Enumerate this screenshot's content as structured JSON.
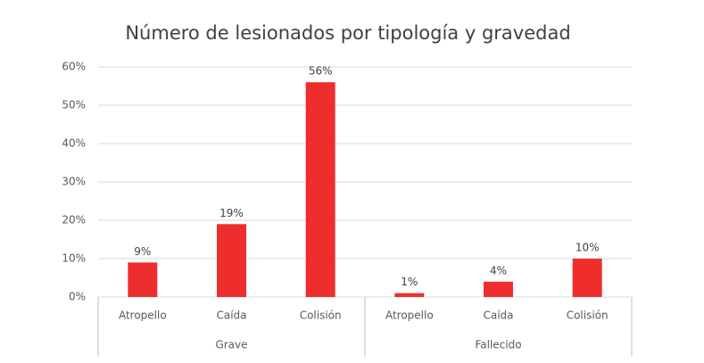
{
  "chart_data": {
    "type": "bar",
    "title": "Número de lesionados por tipología y gravedad",
    "color": "#ee2d2d",
    "grid": true,
    "groups": [
      {
        "name": "Grave",
        "categories": [
          "Atropello",
          "Caída",
          "Colisión"
        ],
        "values": [
          9,
          19,
          56
        ],
        "value_labels": [
          "9%",
          "19%",
          "56%"
        ]
      },
      {
        "name": "Fallecido",
        "categories": [
          "Atropello",
          "Caída",
          "Colisión"
        ],
        "values": [
          1,
          4,
          10
        ],
        "value_labels": [
          "1%",
          "4%",
          "10%"
        ]
      }
    ],
    "ylim": [
      0,
      60
    ],
    "yticks": [
      {
        "value": 0,
        "label": "0%"
      },
      {
        "value": 10,
        "label": "10%"
      },
      {
        "value": 20,
        "label": "20%"
      },
      {
        "value": 30,
        "label": "30%"
      },
      {
        "value": 40,
        "label": "40%"
      },
      {
        "value": 50,
        "label": "50%"
      },
      {
        "value": 60,
        "label": "60%"
      }
    ]
  }
}
